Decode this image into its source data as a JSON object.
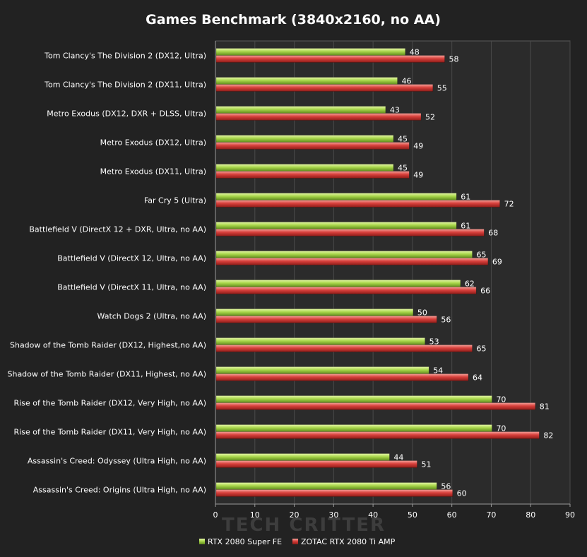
{
  "chart_data": {
    "type": "bar",
    "orientation": "horizontal",
    "title": "Games Benchmark (3840x2160, no AA)",
    "xlabel": "",
    "ylabel": "",
    "xlim": [
      0,
      90
    ],
    "x_ticks": [
      0,
      10,
      20,
      30,
      40,
      50,
      60,
      70,
      80,
      90
    ],
    "grid": true,
    "legend_position": "bottom",
    "watermark": "TECH CRITTER",
    "categories": [
      "Tom Clancy's The Division 2 (DX12, Ultra)",
      "Tom Clancy's The Division 2 (DX11, Ultra)",
      "Metro Exodus (DX12, DXR + DLSS, Ultra)",
      "Metro Exodus (DX12, Ultra)",
      "Metro Exodus (DX11, Ultra)",
      "Far Cry 5 (Ultra)",
      "Battlefield V (DirectX 12 + DXR, Ultra,  no AA)",
      "Battlefield V (DirectX 12, Ultra,  no AA)",
      "Battlefield V (DirectX 11, Ultra,  no AA)",
      "Watch Dogs 2 (Ultra, no AA)",
      "Shadow of the Tomb  Raider (DX12, Highest,no AA)",
      "Shadow of the Tomb  Raider (DX11, Highest, no AA)",
      "Rise of the Tomb  Raider (DX12, Very High, no AA)",
      "Rise of the Tomb  Raider (DX11, Very High, no AA)",
      "Assassin's Creed: Odyssey (Ultra High, no AA)",
      "Assassin's Creed: Origins (Ultra High, no AA)"
    ],
    "series": [
      {
        "name": "RTX 2080 Super FE",
        "color": "#9ccc3c",
        "values": [
          48,
          46,
          43,
          45,
          45,
          61,
          61,
          65,
          62,
          50,
          53,
          54,
          70,
          70,
          44,
          56
        ]
      },
      {
        "name": "ZOTAC RTX 2080 Ti AMP",
        "color": "#d8403c",
        "values": [
          58,
          55,
          52,
          49,
          49,
          72,
          68,
          69,
          66,
          56,
          65,
          64,
          81,
          82,
          51,
          60
        ]
      }
    ]
  }
}
